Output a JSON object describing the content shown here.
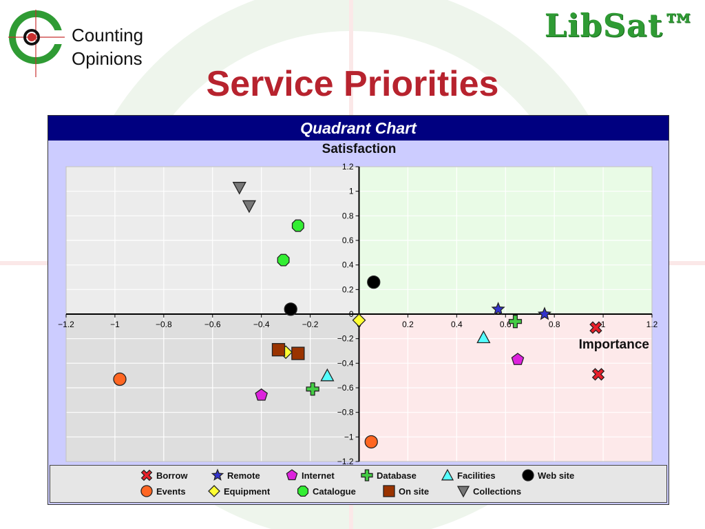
{
  "header": {
    "logo_line1": "Counting",
    "logo_line2": "Opinions",
    "brand": "LibSat™",
    "title": "Service Priorities"
  },
  "colors": {
    "title_red": "#b7232e",
    "brand_green": "#2f9b34",
    "chart_header_bg": "#000080",
    "frame_bg": "#ccccff",
    "q1_fill": "#e9fbe6",
    "q2_fill": "#ececec",
    "q3_fill": "#dedede",
    "q4_fill": "#fde9ea"
  },
  "chart_data": {
    "type": "scatter",
    "title": "Quadrant Chart",
    "xlabel": "Importance",
    "ylabel": "Satisfaction",
    "xlim": [
      -1.2,
      1.2
    ],
    "ylim": [
      -1.2,
      1.2
    ],
    "x_ticks": [
      "−1.2",
      "−1",
      "−0.8",
      "−0.6",
      "−0.4",
      "−0.2",
      "0",
      "0.2",
      "0.4",
      "0.6",
      "0.8",
      "1",
      "1.2"
    ],
    "y_ticks": [
      "1.2",
      "1",
      "0.8",
      "0.6",
      "0.4",
      "0.2",
      "0",
      "−0.2",
      "−0.4",
      "−0.6",
      "−0.8",
      "−1",
      "−1.2"
    ],
    "grid": true,
    "legend_position": "bottom",
    "series": [
      {
        "name": "Borrow",
        "marker": "x-icon",
        "color": "#e8202a",
        "points": [
          [
            0.97,
            -0.11
          ],
          [
            0.98,
            -0.49
          ]
        ]
      },
      {
        "name": "Remote",
        "marker": "star-icon",
        "color": "#3333cc",
        "points": [
          [
            0.57,
            0.04
          ],
          [
            0.76,
            0.0
          ]
        ]
      },
      {
        "name": "Internet",
        "marker": "pentagon-icon",
        "color": "#dd22dd",
        "points": [
          [
            -0.4,
            -0.66
          ],
          [
            0.65,
            -0.37
          ]
        ]
      },
      {
        "name": "Database",
        "marker": "plus-icon",
        "color": "#44cc44",
        "points": [
          [
            -0.19,
            -0.61
          ],
          [
            0.64,
            -0.06
          ]
        ]
      },
      {
        "name": "Facilities",
        "marker": "triangle-up-icon",
        "color": "#55ffff",
        "points": [
          [
            -0.13,
            -0.5
          ],
          [
            0.51,
            -0.19
          ]
        ]
      },
      {
        "name": "Web site",
        "marker": "circle-icon",
        "color": "#000000",
        "points": [
          [
            -0.28,
            0.04
          ],
          [
            0.06,
            0.26
          ]
        ]
      },
      {
        "name": "Events",
        "marker": "circle-icon",
        "color": "#ff6622",
        "points": [
          [
            -0.98,
            -0.53
          ],
          [
            0.05,
            -1.04
          ]
        ]
      },
      {
        "name": "Equipment",
        "marker": "diamond-icon",
        "color": "#ffff33",
        "points": [
          [
            -0.3,
            -0.31
          ],
          [
            0.0,
            -0.05
          ]
        ]
      },
      {
        "name": "Catalogue",
        "marker": "octagon-icon",
        "color": "#33ee33",
        "points": [
          [
            -0.31,
            0.44
          ],
          [
            -0.25,
            0.72
          ]
        ]
      },
      {
        "name": "On site",
        "marker": "square-icon",
        "color": "#9a3300",
        "points": [
          [
            -0.33,
            -0.29
          ],
          [
            -0.25,
            -0.32
          ]
        ]
      },
      {
        "name": "Collections",
        "marker": "triangle-down-icon",
        "color": "#777777",
        "points": [
          [
            -0.49,
            1.03
          ],
          [
            -0.45,
            0.88
          ]
        ]
      }
    ]
  }
}
